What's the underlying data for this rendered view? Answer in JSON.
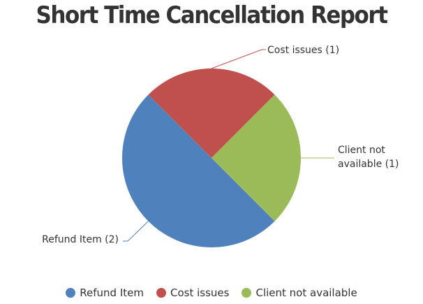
{
  "chart_data": {
    "type": "pie",
    "title": "Short Time Cancellation Report",
    "slices": [
      {
        "name": "Refund Item",
        "value": 2,
        "label": "Refund Item (2)",
        "label_lines": [
          "Refund Item (2)"
        ],
        "color": "#4f81bd"
      },
      {
        "name": "Cost issues",
        "value": 1,
        "label": "Cost issues (1)",
        "label_lines": [
          "Cost issues (1)"
        ],
        "color": "#c0504d"
      },
      {
        "name": "Client not available",
        "value": 1,
        "label": "Client not available (1)",
        "label_lines": [
          "Client not",
          "available (1)"
        ],
        "color": "#9bbb59"
      }
    ],
    "legend": {
      "placement": "bottom-center",
      "items": [
        "Refund Item",
        "Cost issues",
        "Client not available"
      ]
    }
  }
}
